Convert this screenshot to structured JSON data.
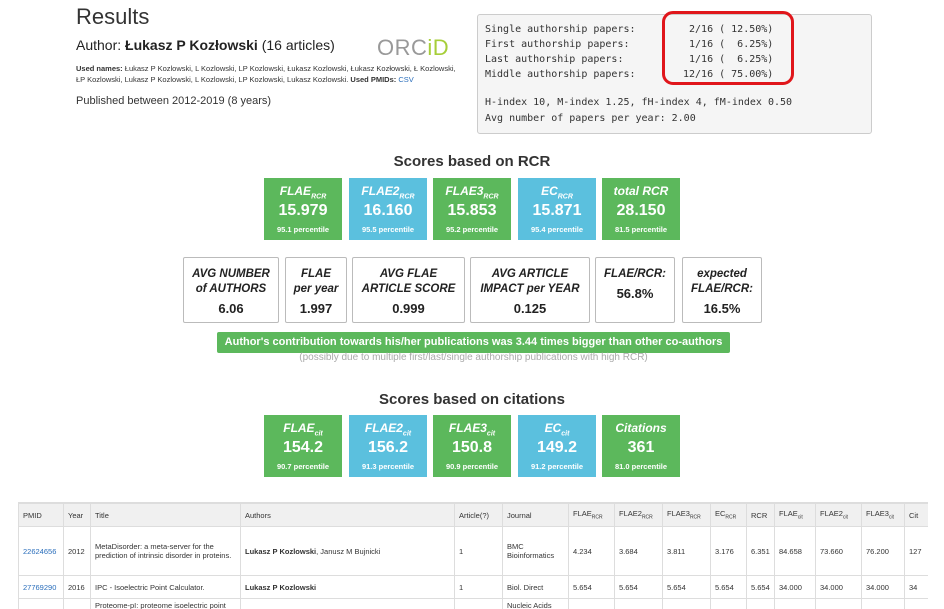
{
  "header": {
    "title": "Results",
    "author_prefix": "Author: ",
    "author_name": "Łukasz P Kozłowski",
    "author_suffix": " (16 articles)",
    "orcid_left": "ORC",
    "orcid_right": "iD",
    "used_names_label": "Used names:",
    "used_names": " Łukasz P Kozlowski, L Kozlowski, LP Kozlowski, Łukasz Kozlowski, Łukasz Kozłowski, Ł Kozlowski, ŁP Kozlowski, Lukasz P Kozlowski, L Kozlowski, LP Kozlowski, Lukasz Kozlowski.",
    "used_pmids_label": " Used PMIDs:",
    "used_pmids_link": "CSV",
    "published": "Published between 2012-2019 (8 years)"
  },
  "stats": {
    "rows": [
      {
        "label": "Single authorship papers:",
        "value": " 2/16 ( 12.50%)"
      },
      {
        "label": "First authorship papers:",
        "value": " 1/16 (  6.25%)"
      },
      {
        "label": "Last authorship papers:",
        "value": " 1/16 (  6.25%)"
      },
      {
        "label": "Middle authorship papers:",
        "value": "12/16 ( 75.00%)"
      }
    ],
    "hindex": "H-index 10, M-index 1.25, fH-index 4, fM-index 0.50",
    "avg_papers": "Avg number of papers per year: 2.00",
    "highlight_color": "#e0161b"
  },
  "rcr": {
    "title": "Scores based on RCR",
    "boxes": [
      {
        "label": "FLAE",
        "sub": "RCR",
        "value": "15.979",
        "pct": "95.1 percentile",
        "color": "green"
      },
      {
        "label": "FLAE2",
        "sub": "RCR",
        "value": "16.160",
        "pct": "95.5 percentile",
        "color": "blue"
      },
      {
        "label": "FLAE3",
        "sub": "RCR",
        "value": "15.853",
        "pct": "95.2 percentile",
        "color": "green"
      },
      {
        "label": "EC",
        "sub": "RCR",
        "value": "15.871",
        "pct": "95.4 percentile",
        "color": "blue"
      },
      {
        "label": "total RCR",
        "sub": "",
        "value": "28.150",
        "pct": "81.5 percentile",
        "color": "green"
      }
    ],
    "avg": [
      {
        "line1": "AVG NUMBER",
        "line2": "of AUTHORS",
        "value": "6.06"
      },
      {
        "line1": "FLAE",
        "line2": "per year",
        "value": "1.997"
      },
      {
        "line1": "AVG FLAE",
        "line2": "ARTICLE SCORE",
        "value": "0.999"
      },
      {
        "line1": "AVG ARTICLE",
        "line2": "IMPACT per YEAR",
        "value": "0.125"
      },
      {
        "line1": "FLAE/RCR:",
        "line2": "",
        "value": "56.8%"
      },
      {
        "line1": "expected",
        "line2": "FLAE/RCR:",
        "value": "16.5%"
      }
    ],
    "contribution": "Author's contribution towards his/her publications was 3.44 times bigger than other co-authors",
    "contribution_note": "(possibly due to multiple first/last/single authorship publications with high RCR)"
  },
  "citations": {
    "title": "Scores based on citations",
    "boxes": [
      {
        "label": "FLAE",
        "sub": "cit",
        "value": "154.2",
        "pct": "90.7 percentile",
        "color": "green"
      },
      {
        "label": "FLAE2",
        "sub": "cit",
        "value": "156.2",
        "pct": "91.3 percentile",
        "color": "blue"
      },
      {
        "label": "FLAE3",
        "sub": "cit",
        "value": "150.8",
        "pct": "90.9 percentile",
        "color": "green"
      },
      {
        "label": "EC",
        "sub": "cit",
        "value": "149.2",
        "pct": "91.2 percentile",
        "color": "blue"
      },
      {
        "label": "Citations",
        "sub": "",
        "value": "361",
        "pct": "81.0 percentile",
        "color": "green"
      }
    ]
  },
  "table": {
    "headers": [
      {
        "label": "PMID",
        "sub": ""
      },
      {
        "label": "Year",
        "sub": ""
      },
      {
        "label": "Title",
        "sub": ""
      },
      {
        "label": "Authors",
        "sub": ""
      },
      {
        "label": "Article(?)",
        "sub": ""
      },
      {
        "label": "Journal",
        "sub": ""
      },
      {
        "label": "FLAE",
        "sub": "RCR"
      },
      {
        "label": "FLAE2",
        "sub": "RCR"
      },
      {
        "label": "FLAE3",
        "sub": "RCR"
      },
      {
        "label": "EC",
        "sub": "RCR"
      },
      {
        "label": "RCR",
        "sub": ""
      },
      {
        "label": "FLAE",
        "sub": "cit"
      },
      {
        "label": "FLAE2",
        "sub": "cit"
      },
      {
        "label": "FLAE3",
        "sub": "cit"
      },
      {
        "label": "Cit",
        "sub": ""
      }
    ],
    "rows": [
      {
        "pmid": "22624656",
        "year": "2012",
        "title": "MetaDisorder: a meta-server for the prediction of intrinsic disorder in proteins.",
        "author_bold": "Lukasz P Kozlowski",
        "author_rest": ", Janusz M Bujnicki",
        "article": "1",
        "journal": "BMC Bioinformatics",
        "flae_rcr": "4.234",
        "flae2_rcr": "3.684",
        "flae3_rcr": "3.811",
        "ec_rcr": "3.176",
        "rcr": "6.351",
        "flae_cit": "84.658",
        "flae2_cit": "73.660",
        "flae3_cit": "76.200",
        "cit": "127"
      },
      {
        "pmid": "27769290",
        "year": "2016",
        "title": "IPC - Isoelectric Point Calculator.",
        "author_bold": "Lukasz P Kozlowski",
        "author_rest": "",
        "article": "1",
        "journal": "Biol. Direct",
        "flae_rcr": "5.654",
        "flae2_rcr": "5.654",
        "flae3_rcr": "5.654",
        "ec_rcr": "5.654",
        "rcr": "5.654",
        "flae_cit": "34.000",
        "flae2_cit": "34.000",
        "flae3_cit": "34.000",
        "cit": "34"
      },
      {
        "pmid": "",
        "year": "",
        "title": "Proteome-pI: proteome isoelectric point",
        "author_bold": "",
        "author_rest": "",
        "article": "",
        "journal": "Nucleic Acids",
        "flae_rcr": "",
        "flae2_rcr": "",
        "flae3_rcr": "",
        "ec_rcr": "",
        "rcr": "",
        "flae_cit": "",
        "flae2_cit": "",
        "flae3_cit": "",
        "cit": ""
      }
    ]
  }
}
